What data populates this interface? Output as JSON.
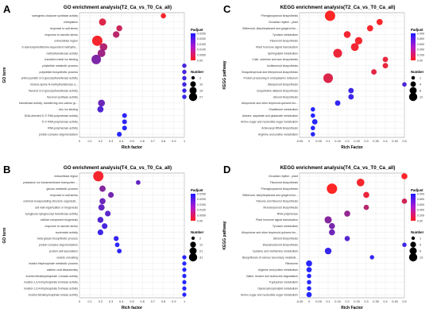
{
  "chart_data": [
    {
      "panel_letter": "A",
      "type": "scatter",
      "title": "GO enrichment analysis(T2_Ca_vs_T0_Ca_all)",
      "xlabel": "Rich factor",
      "ylabel": "GO term",
      "xlim": [
        0,
        1
      ],
      "xticks": [
        "0",
        "0.1",
        "0.2",
        "0.3",
        "0.4",
        "0.5",
        "0.6",
        "0.7",
        "0.8",
        "0.9",
        "1"
      ],
      "grid": true,
      "legend_position": "right",
      "color_legend": {
        "title": "Padjust",
        "ticks": [
          "0.0250",
          "0.0200",
          "0.0150",
          "0.0100",
          "0.0050",
          "0.00"
        ],
        "high": "#1a1aff",
        "low": "#ff1a1a"
      },
      "size_legend": {
        "title": "Number",
        "values": [
          2,
          10,
          19,
          27
        ],
        "labels": [
          "2",
          "10",
          "19",
          "27"
        ]
      },
      "categories": [
        "naringenin-chalcone synthase activity",
        "methylation",
        "response to salt stress",
        "response to osmotic stress",
        "extracellular region",
        "S-adenosylmethionine-dependent methyltra...",
        "methyltransferase activity",
        "transition metal ion binding",
        "polyketide metabolic process",
        "polyketide biosynthetic process",
        "anthocyanidin 3-O-glucosyltransferase activity",
        "histone-lysine N-methyltransferase a...",
        "flavonol 3-O-glucosyltransferase activity",
        "flavonol synthase activity",
        "transferase activity, transferring one-carbon gr...",
        "zinc ion binding",
        "DNA-directed 5'-3' RNA polymerase activity",
        "5'-3' RNA polymerase activity",
        "RNA polymerase activity",
        "protein complex oligomerization"
      ],
      "points": [
        {
          "x": 0.8,
          "n": 4,
          "p": 0.001
        },
        {
          "x": 0.22,
          "n": 10,
          "p": 0.004
        },
        {
          "x": 0.38,
          "n": 6,
          "p": 0.006
        },
        {
          "x": 0.35,
          "n": 8,
          "p": 0.008
        },
        {
          "x": 0.17,
          "n": 27,
          "p": 0.001
        },
        {
          "x": 0.23,
          "n": 12,
          "p": 0.009
        },
        {
          "x": 0.21,
          "n": 13,
          "p": 0.011
        },
        {
          "x": 0.16,
          "n": 22,
          "p": 0.015
        },
        {
          "x": 1.0,
          "n": 2,
          "p": 0.021
        },
        {
          "x": 1.0,
          "n": 2,
          "p": 0.021
        },
        {
          "x": 1.0,
          "n": 2,
          "p": 0.022
        },
        {
          "x": 1.0,
          "n": 2,
          "p": 0.022
        },
        {
          "x": 1.0,
          "n": 2,
          "p": 0.023
        },
        {
          "x": 1.0,
          "n": 2,
          "p": 0.023
        },
        {
          "x": 0.21,
          "n": 9,
          "p": 0.017
        },
        {
          "x": 0.2,
          "n": 7,
          "p": 0.02
        },
        {
          "x": 0.43,
          "n": 3,
          "p": 0.024
        },
        {
          "x": 0.43,
          "n": 3,
          "p": 0.024
        },
        {
          "x": 0.43,
          "n": 3,
          "p": 0.025
        },
        {
          "x": 0.38,
          "n": 3,
          "p": 0.025
        }
      ]
    },
    {
      "panel_letter": "C",
      "type": "scatter",
      "title": "KEGG enrichment analysis(T2_Ca_vs_T0_Ca_all)",
      "xlabel": "Rich Factor",
      "ylabel": "KEGG pathway",
      "xlim": [
        -0.05,
        0.5
      ],
      "xticks": [
        "-0.05",
        "0",
        "0.05",
        "0.1",
        "0.15",
        "0.2",
        "0.25",
        "0.3",
        "0.35",
        "0.4",
        "0.45",
        "0.5"
      ],
      "grid": true,
      "legend_position": "right",
      "color_legend": {
        "title": "Padjust",
        "ticks": [
          "0.900",
          "0.800",
          "0.600",
          "0.400",
          "0.200",
          "0.00"
        ],
        "high": "#1a1aff",
        "low": "#ff1a1a"
      },
      "size_legend": {
        "title": "Number",
        "values": [
          1,
          4,
          8,
          12
        ],
        "labels": [
          "1",
          "4",
          "8",
          "12"
        ]
      },
      "categories": [
        "Phenylpropanoid biosynthesis",
        "Circadian rhythm - plant",
        "Stilbenoid, diarylheptanoid and gingerol bio...",
        "Tyrosine metabolism",
        "Flavonoid biosynthesis",
        "Plant hormone signal transduction",
        "Sphingolipid metabolism",
        "Cutin, suberine and wax biosynthesis",
        "Isoflavonoid biosynthesis",
        "Sesquiterpenoid and triterpenoid biosynthesis",
        "Protein processing in endoplasmic reticulum",
        "Diterpenoid biosynthesis",
        "Isoquinoline alkaloid biosynthesis",
        "Steroid biosynthesis",
        "Ubiquinone and other terpenoid-quinone bio...",
        "Glutathione metabolism",
        "Alanine, aspartate and glutamate metabolism",
        "Amino sugar and nucleotide sugar metabolism",
        "Aminoacyl-tRNA biosynthesis",
        "Arginine and proline metabolism"
      ],
      "points": [
        {
          "x": 0.11,
          "n": 12,
          "p": 0.0
        },
        {
          "x": 0.37,
          "n": 3,
          "p": 0.02
        },
        {
          "x": 0.32,
          "n": 3,
          "p": 0.03
        },
        {
          "x": 0.2,
          "n": 4,
          "p": 0.05
        },
        {
          "x": 0.26,
          "n": 5,
          "p": 0.04
        },
        {
          "x": 0.24,
          "n": 6,
          "p": 0.06
        },
        {
          "x": 0.15,
          "n": 8,
          "p": 0.08
        },
        {
          "x": 0.4,
          "n": 2,
          "p": 0.1
        },
        {
          "x": 0.4,
          "n": 2,
          "p": 0.1
        },
        {
          "x": 0.34,
          "n": 2,
          "p": 0.12
        },
        {
          "x": 0.1,
          "n": 10,
          "p": 0.15
        },
        {
          "x": 0.5,
          "n": 1,
          "p": 0.75
        },
        {
          "x": 0.22,
          "n": 2,
          "p": 0.8
        },
        {
          "x": 0.22,
          "n": 2,
          "p": 0.8
        },
        {
          "x": 0.15,
          "n": 2,
          "p": 0.85
        },
        {
          "x": 0.02,
          "n": 1,
          "p": 0.95
        },
        {
          "x": 0.02,
          "n": 1,
          "p": 0.95
        },
        {
          "x": 0.03,
          "n": 2,
          "p": 0.95
        },
        {
          "x": 0.02,
          "n": 1,
          "p": 0.96
        },
        {
          "x": 0.02,
          "n": 1,
          "p": 0.97
        }
      ]
    },
    {
      "panel_letter": "B",
      "type": "scatter",
      "title": "GO enrichment analysis(T4_Ca_vs_T0_Ca_all)",
      "xlabel": "Rich factor",
      "ylabel": "GO term",
      "xlim": [
        0,
        1
      ],
      "xticks": [
        "0",
        "0.1",
        "0.2",
        "0.3",
        "0.4",
        "0.5",
        "0.6",
        "0.7",
        "0.8",
        "0.9",
        "1"
      ],
      "grid": true,
      "legend_position": "right",
      "color_legend": {
        "title": "Padjust",
        "ticks": [
          "0.0250",
          "0.0200",
          "0.0150",
          "0.0100",
          "0.0050",
          "0.00"
        ],
        "high": "#1a1aff",
        "low": "#ff1a1a"
      },
      "size_legend": {
        "title": "Number",
        "values": [
          2,
          12,
          21,
          31
        ],
        "labels": [
          "2",
          "12",
          "21",
          "31"
        ]
      },
      "categories": [
        "extracellular region",
        "potassium ion transmembrane transporter ...",
        "glucan metabolic process",
        "response to salt stress",
        "external encapsulating structure organizati...",
        "cell wall organization or biogenesis",
        "xyloglucan:xyloglucosyl transferase activity",
        "cellular component biogenesis",
        "response to osmotic stress",
        "nucleoside activity",
        "beta-glucan biosynthetic process",
        "protein complex oligomerization",
        "protein self-association",
        "vesicle uncoating",
        "inositol trisphosphate metabolic process",
        "clathrin coat disassembly",
        "inositol tetrakisphosphate 1-kinase activity",
        "inositol-1,3,4-trisphosphate 6-kinase activity",
        "inositol-1,3,4-trisphosphate 5-kinase activity",
        "inositol tetrakisphosphate kinase activity"
      ],
      "points": [
        {
          "x": 0.18,
          "n": 31,
          "p": 0.001
        },
        {
          "x": 0.56,
          "n": 3,
          "p": 0.018
        },
        {
          "x": 0.22,
          "n": 8,
          "p": 0.014
        },
        {
          "x": 0.3,
          "n": 6,
          "p": 0.016
        },
        {
          "x": 0.22,
          "n": 7,
          "p": 0.017
        },
        {
          "x": 0.21,
          "n": 8,
          "p": 0.018
        },
        {
          "x": 0.27,
          "n": 6,
          "p": 0.019
        },
        {
          "x": 0.2,
          "n": 7,
          "p": 0.02
        },
        {
          "x": 0.24,
          "n": 6,
          "p": 0.021
        },
        {
          "x": 0.2,
          "n": 6,
          "p": 0.022
        },
        {
          "x": 0.35,
          "n": 4,
          "p": 0.023
        },
        {
          "x": 0.36,
          "n": 3,
          "p": 0.024
        },
        {
          "x": 0.38,
          "n": 3,
          "p": 0.024
        },
        {
          "x": 1.0,
          "n": 2,
          "p": 0.025
        },
        {
          "x": 1.0,
          "n": 2,
          "p": 0.025
        },
        {
          "x": 1.0,
          "n": 2,
          "p": 0.025
        },
        {
          "x": 1.0,
          "n": 2,
          "p": 0.025
        },
        {
          "x": 1.0,
          "n": 2,
          "p": 0.025
        },
        {
          "x": 1.0,
          "n": 2,
          "p": 0.025
        },
        {
          "x": 1.0,
          "n": 2,
          "p": 0.025
        }
      ]
    },
    {
      "panel_letter": "D",
      "type": "scatter",
      "title": "KEGG enrichment analysis(T4_Ca_vs_T0_Ca_all)",
      "xlabel": "Rich Factor",
      "ylabel": "KEGG pathway",
      "xlim": [
        -0.05,
        0.5
      ],
      "xticks": [
        "-0.05",
        "0",
        "0.05",
        "0.1",
        "0.15",
        "0.2",
        "0.25",
        "0.3",
        "0.35",
        "0.4",
        "0.45",
        "0.5"
      ],
      "grid": true,
      "legend_position": "right",
      "color_legend": {
        "title": "Padjust",
        "ticks": [
          "0.900",
          "0.800",
          "0.600",
          "0.400",
          "0.200",
          "0.00"
        ],
        "high": "#1a1aff",
        "low": "#ff1a1a"
      },
      "size_legend": {
        "title": "Number",
        "values": [
          1,
          5,
          9,
          13
        ],
        "labels": [
          "1",
          "5",
          "9",
          "13"
        ]
      },
      "categories": [
        "Circadian rhythm - plant",
        "Flavonoid biosynthesis",
        "Phenylpropanoid biosynthesis",
        "Stilbenoid, diarylheptanoid and gingerol bio...",
        "Flavone and flavonol biosynthesis",
        "Monoterpenoid biosynthesis",
        "RNA polymerase",
        "Plant hormone signal transduction",
        "Tyrosine metabolism",
        "Ubiquinone and other terpenoid-quinone bio...",
        "Steroid biosynthesis",
        "Brassinosteroid biosynthesis",
        "Cysteine and methionine metabolism",
        "Biosynthesis of various secondary metaboli...",
        "Ribosome",
        "Arginine and proline metabolism",
        "Valine, leucine and isoleucine degradation",
        "Tryptophan metabolism",
        "Glycerophospholipid metabolism",
        "Amino sugar and nucleotide sugar metabolism"
      ],
      "points": [
        {
          "x": 0.5,
          "n": 3,
          "p": 0.02
        },
        {
          "x": 0.27,
          "n": 6,
          "p": 0.03
        },
        {
          "x": 0.12,
          "n": 13,
          "p": 0.0
        },
        {
          "x": 0.3,
          "n": 3,
          "p": 0.08
        },
        {
          "x": 0.5,
          "n": 2,
          "p": 0.2
        },
        {
          "x": 0.3,
          "n": 2,
          "p": 0.3
        },
        {
          "x": 0.2,
          "n": 3,
          "p": 0.45
        },
        {
          "x": 0.1,
          "n": 5,
          "p": 0.5
        },
        {
          "x": 0.12,
          "n": 3,
          "p": 0.55
        },
        {
          "x": 0.12,
          "n": 3,
          "p": 0.6
        },
        {
          "x": 0.2,
          "n": 2,
          "p": 0.7
        },
        {
          "x": 0.5,
          "n": 1,
          "p": 0.8
        },
        {
          "x": 0.1,
          "n": 4,
          "p": 0.82
        },
        {
          "x": 0.33,
          "n": 1,
          "p": 0.85
        },
        {
          "x": 0.0,
          "n": 3,
          "p": 0.9
        },
        {
          "x": 0.0,
          "n": 2,
          "p": 0.93
        },
        {
          "x": 0.0,
          "n": 1,
          "p": 0.94
        },
        {
          "x": 0.0,
          "n": 1,
          "p": 0.95
        },
        {
          "x": 0.0,
          "n": 1,
          "p": 0.96
        },
        {
          "x": 0.0,
          "n": 2,
          "p": 0.97
        }
      ]
    }
  ]
}
